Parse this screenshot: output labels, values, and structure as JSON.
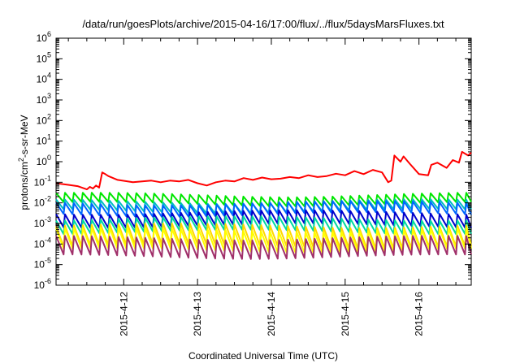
{
  "chart_data": {
    "type": "line",
    "title": "/data/run/goesPlots/archive/2015-04-16/17:00/flux/../flux/5daysMarsFluxes.txt",
    "xlabel": "Coordinated Universal Time (UTC)",
    "ylabel": {
      "prefix": "protons/cm",
      "sup": "2",
      "suffix": "-s-sr-MeV"
    },
    "yscale": "log",
    "ylim": [
      1e-06,
      1000000.0
    ],
    "xlim": [
      "2015-04-11 02:00",
      "2015-04-16 17:00"
    ],
    "x_ticks": [
      "2015-4-12",
      "2015-4-13",
      "2015-4-14",
      "2015-4-15",
      "2015-4-16"
    ],
    "y_ticks": [
      {
        "base": "10",
        "exp": "-6",
        "value": 1e-06
      },
      {
        "base": "10",
        "exp": "-5",
        "value": 1e-05
      },
      {
        "base": "10",
        "exp": "-4",
        "value": 0.0001
      },
      {
        "base": "10",
        "exp": "-3",
        "value": 0.001
      },
      {
        "base": "10",
        "exp": "-2",
        "value": 0.01
      },
      {
        "base": "10",
        "exp": "-1",
        "value": 0.1
      },
      {
        "base": "10",
        "exp": "0",
        "value": 1
      },
      {
        "base": "10",
        "exp": "1",
        "value": 10
      },
      {
        "base": "10",
        "exp": "2",
        "value": 100
      },
      {
        "base": "10",
        "exp": "3",
        "value": 1000
      },
      {
        "base": "10",
        "exp": "4",
        "value": 10000
      },
      {
        "base": "10",
        "exp": "5",
        "value": 100000
      },
      {
        "base": "10",
        "exp": "6",
        "value": 1000000
      }
    ],
    "grid": false,
    "legend": "none",
    "series": [
      {
        "color": "#ff0000",
        "x": [
          "2015-04-11 02:00",
          "2015-04-11 06:00",
          "2015-04-11 09:00",
          "2015-04-11 12:00",
          "2015-04-11 13:00",
          "2015-04-11 14:00",
          "2015-04-11 15:00",
          "2015-04-11 16:00",
          "2015-04-11 17:00",
          "2015-04-11 18:00",
          "2015-04-11 19:00",
          "2015-04-11 22:00",
          "2015-04-12 03:00",
          "2015-04-12 06:00",
          "2015-04-12 09:00",
          "2015-04-12 12:00",
          "2015-04-12 15:00",
          "2015-04-12 18:00",
          "2015-04-12 21:00",
          "2015-04-13 00:00",
          "2015-04-13 03:00",
          "2015-04-13 06:00",
          "2015-04-13 09:00",
          "2015-04-13 12:00",
          "2015-04-13 15:00",
          "2015-04-13 18:00",
          "2015-04-13 21:00",
          "2015-04-14 00:00",
          "2015-04-14 03:00",
          "2015-04-14 06:00",
          "2015-04-14 09:00",
          "2015-04-14 12:00",
          "2015-04-14 15:00",
          "2015-04-14 18:00",
          "2015-04-14 21:00",
          "2015-04-15 00:00",
          "2015-04-15 03:00",
          "2015-04-15 06:00",
          "2015-04-15 09:00",
          "2015-04-15 12:00",
          "2015-04-15 14:00",
          "2015-04-15 15:00",
          "2015-04-15 16:00",
          "2015-04-15 18:00",
          "2015-04-15 19:00",
          "2015-04-15 21:00",
          "2015-04-16 00:00",
          "2015-04-16 03:00",
          "2015-04-16 04:00",
          "2015-04-16 06:00",
          "2015-04-16 09:00",
          "2015-04-16 11:00",
          "2015-04-16 13:00",
          "2015-04-16 14:00",
          "2015-04-16 16:00",
          "2015-04-16 17:00"
        ],
        "y": [
          0.09,
          0.075,
          0.065,
          0.045,
          0.06,
          0.05,
          0.07,
          0.055,
          0.3,
          0.25,
          0.2,
          0.13,
          0.1,
          0.11,
          0.12,
          0.1,
          0.12,
          0.11,
          0.13,
          0.09,
          0.07,
          0.1,
          0.12,
          0.11,
          0.16,
          0.13,
          0.17,
          0.14,
          0.15,
          0.18,
          0.16,
          0.22,
          0.18,
          0.2,
          0.26,
          0.22,
          0.35,
          0.25,
          0.4,
          0.3,
          0.1,
          0.12,
          2.0,
          1.0,
          1.8,
          0.8,
          0.25,
          0.22,
          0.7,
          0.9,
          0.5,
          1.2,
          0.9,
          3.0,
          2.0,
          2.8
        ]
      },
      {
        "color": "#00e600",
        "base": 0.012,
        "peak": 0.025,
        "trough": 0.009
      },
      {
        "color": "#00bfbf",
        "base": 0.006,
        "peak": 0.012,
        "trough": 0.004
      },
      {
        "color": "#0066ff",
        "base": 0.0045,
        "peak": 0.01,
        "trough": 0.0028
      },
      {
        "color": "#0000cc",
        "base": 0.0015,
        "peak": 0.0035,
        "trough": 0.0008
      },
      {
        "color": "#00d9a0",
        "base": 0.0007,
        "peak": 0.0018,
        "trough": 0.0004
      },
      {
        "color": "#ffd700",
        "base": 0.00018,
        "peak": 0.0008,
        "trough": 8e-05
      },
      {
        "color": "#ffff00",
        "base": 0.00012,
        "peak": 0.0005,
        "trough": 5e-05
      },
      {
        "color": "#a0306a",
        "base": 4e-05,
        "peak": 0.0002,
        "trough": 2.5e-05
      }
    ]
  }
}
